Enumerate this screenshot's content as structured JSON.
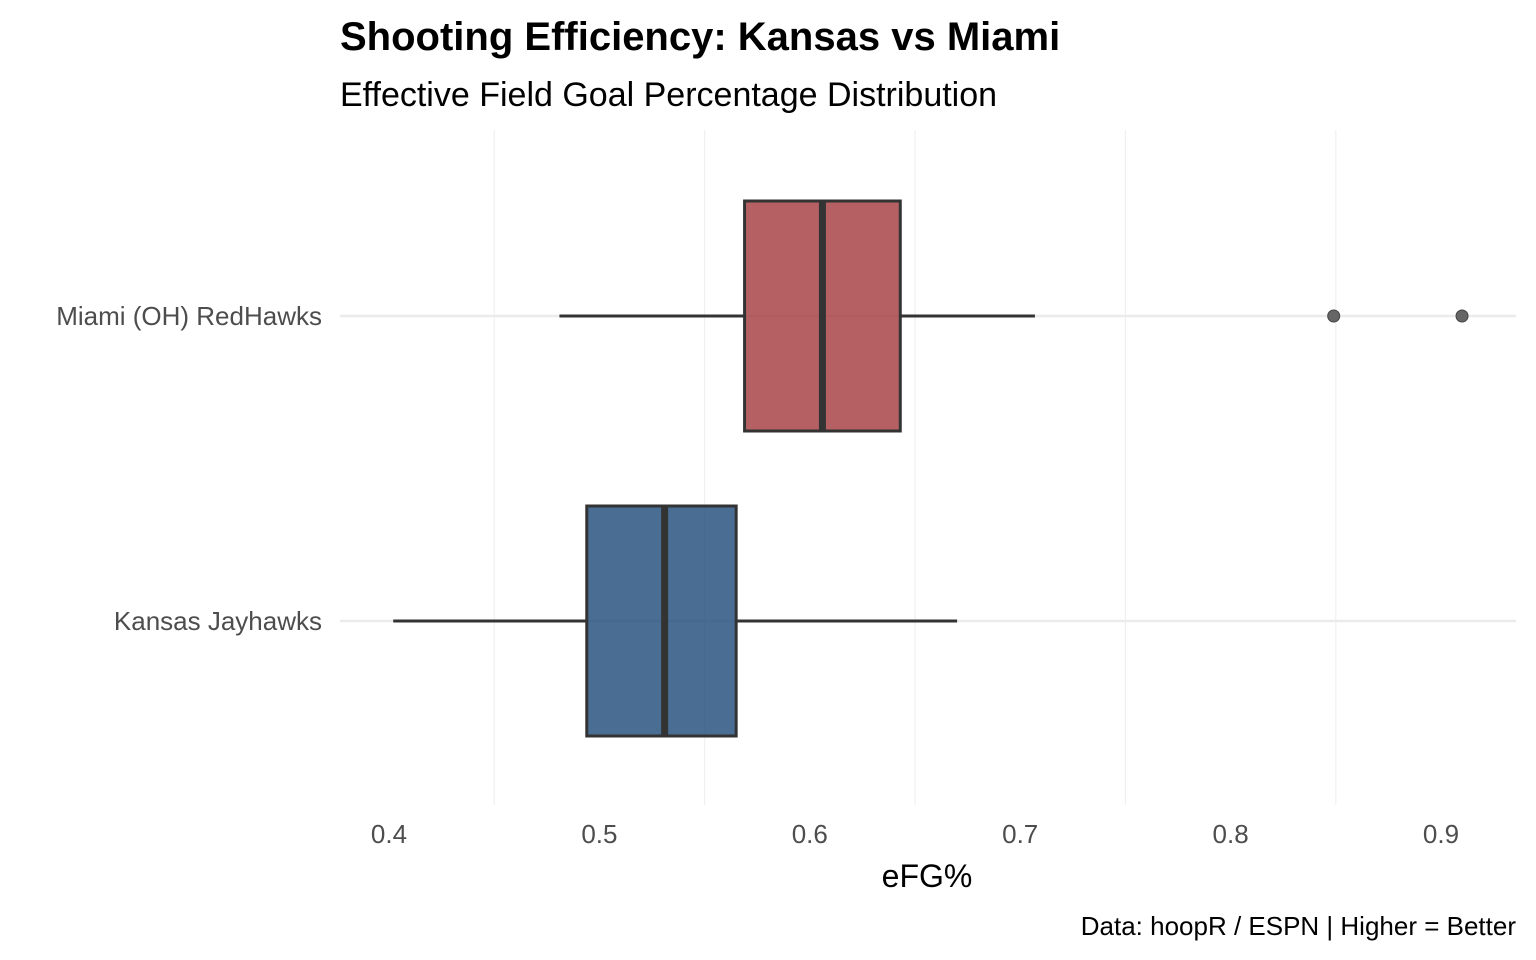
{
  "chart_data": {
    "type": "boxplot",
    "orientation": "horizontal",
    "title": "Shooting Efficiency: Kansas vs Miami",
    "subtitle": "Effective Field Goal Percentage Distribution",
    "xlabel": "eFG%",
    "ylabel": "",
    "caption": "Data: hoopR / ESPN | Higher = Better",
    "xlim": [
      0.385,
      0.92
    ],
    "x_ticks": [
      0.4,
      0.5,
      0.6,
      0.7,
      0.8,
      0.9
    ],
    "x_tick_labels": [
      "0.4",
      "0.5",
      "0.6",
      "0.7",
      "0.8",
      "0.9"
    ],
    "grid": true,
    "legend": "none",
    "categories": [
      "Miami (OH) RedHawks",
      "Kansas Jayhawks"
    ],
    "series": [
      {
        "name": "Miami (OH) RedHawks",
        "color": "#a3393c",
        "whisker_low": 0.481,
        "q1": 0.569,
        "median": 0.606,
        "q3": 0.643,
        "whisker_high": 0.707,
        "outliers": [
          0.849,
          0.91
        ]
      },
      {
        "name": "Kansas Jayhawks",
        "color": "#1d4a78",
        "whisker_low": 0.402,
        "q1": 0.494,
        "median": 0.531,
        "q3": 0.565,
        "whisker_high": 0.67,
        "outliers": []
      }
    ]
  }
}
